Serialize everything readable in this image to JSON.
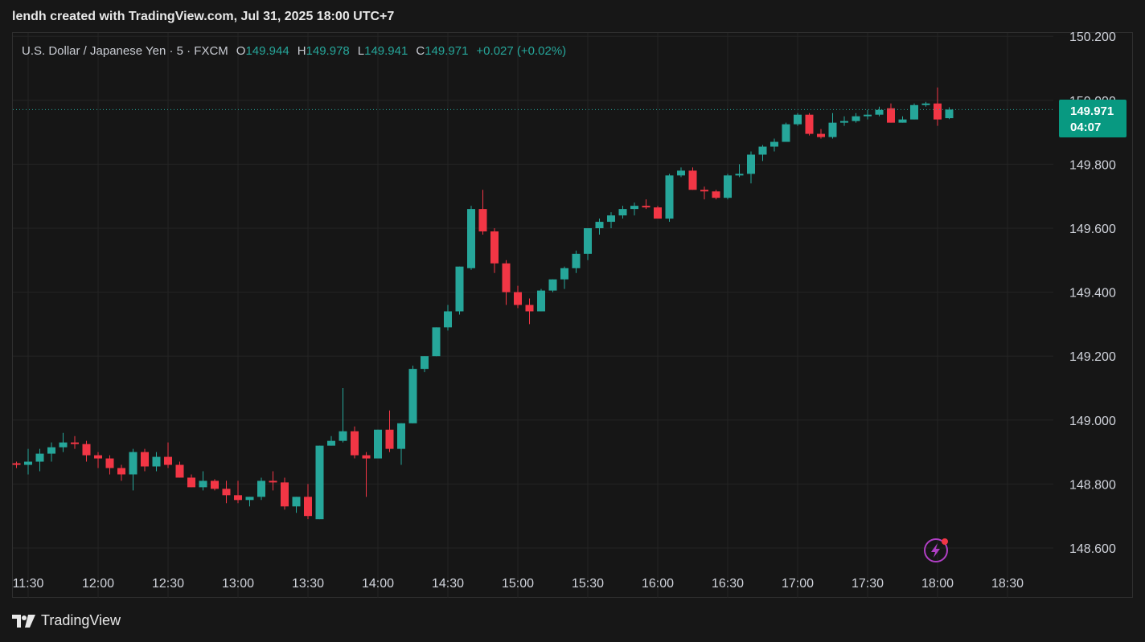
{
  "header": {
    "caption": "lendh created with TradingView.com, Jul 31, 2025 18:00 UTC+7"
  },
  "legend": {
    "symbol": "U.S. Dollar / Japanese Yen · 5 · FXCM",
    "open_key": "O",
    "open": "149.944",
    "high_key": "H",
    "high": "149.978",
    "low_key": "L",
    "low": "149.941",
    "close_key": "C",
    "close": "149.971",
    "change": "+0.027 (+0.02%)"
  },
  "last_price": {
    "price": "149.971",
    "countdown": "04:07"
  },
  "footer": {
    "brand": "TradingView"
  },
  "colors": {
    "up": "#26a69a",
    "down": "#f23645",
    "badge": "#089981",
    "grid": "#242424",
    "axis_text": "#d1d4dc",
    "background": "#161616"
  },
  "chart_data": {
    "type": "candlestick",
    "timeframe": "5",
    "ylim": [
      148.54,
      150.22
    ],
    "y_ticks": [
      148.6,
      148.8,
      149.0,
      149.2,
      149.4,
      149.6,
      149.8,
      150.0,
      150.2
    ],
    "y_tick_labels": [
      "148.600",
      "148.800",
      "149.000",
      "149.200",
      "149.400",
      "149.600",
      "149.800",
      "150.000",
      "150.200"
    ],
    "x_ticks": [
      "11:30",
      "12:00",
      "12:30",
      "13:00",
      "13:30",
      "14:00",
      "14:30",
      "15:00",
      "15:30",
      "16:00",
      "16:30",
      "17:00",
      "17:30",
      "18:00",
      "18:30"
    ],
    "first_candle_time": "11:25",
    "interval_minutes": 5,
    "candles": [
      [
        148.865,
        148.87,
        148.85,
        148.86
      ],
      [
        148.86,
        148.91,
        148.83,
        148.87
      ],
      [
        148.87,
        148.91,
        148.84,
        148.895
      ],
      [
        148.895,
        148.93,
        148.87,
        148.915
      ],
      [
        148.915,
        148.96,
        148.9,
        148.93
      ],
      [
        148.93,
        148.95,
        148.91,
        148.925
      ],
      [
        148.925,
        148.935,
        148.87,
        148.89
      ],
      [
        148.89,
        148.9,
        148.85,
        148.88
      ],
      [
        148.88,
        148.89,
        148.83,
        148.85
      ],
      [
        148.85,
        148.86,
        148.81,
        148.83
      ],
      [
        148.83,
        148.91,
        148.78,
        148.9
      ],
      [
        148.9,
        148.91,
        148.84,
        148.855
      ],
      [
        148.855,
        148.9,
        148.84,
        148.885
      ],
      [
        148.885,
        148.93,
        148.85,
        148.86
      ],
      [
        148.86,
        148.87,
        148.82,
        148.82
      ],
      [
        148.82,
        148.83,
        148.79,
        148.79
      ],
      [
        148.79,
        148.84,
        148.78,
        148.81
      ],
      [
        148.81,
        148.815,
        148.78,
        148.785
      ],
      [
        148.785,
        148.81,
        148.74,
        148.765
      ],
      [
        148.765,
        148.81,
        148.74,
        148.75
      ],
      [
        148.75,
        148.76,
        148.73,
        148.76
      ],
      [
        148.76,
        148.82,
        148.75,
        148.81
      ],
      [
        148.81,
        148.84,
        148.78,
        148.805
      ],
      [
        148.805,
        148.82,
        148.72,
        148.73
      ],
      [
        148.73,
        148.76,
        148.71,
        148.76
      ],
      [
        148.76,
        148.8,
        148.69,
        148.7
      ],
      [
        148.69,
        148.92,
        148.69,
        148.92
      ],
      [
        148.92,
        148.95,
        148.92,
        148.935
      ],
      [
        148.935,
        149.1,
        148.93,
        148.965
      ],
      [
        148.965,
        148.98,
        148.88,
        148.89
      ],
      [
        148.89,
        148.9,
        148.76,
        148.88
      ],
      [
        148.88,
        148.97,
        148.88,
        148.97
      ],
      [
        148.97,
        149.03,
        148.9,
        148.91
      ],
      [
        148.91,
        148.99,
        148.86,
        148.99
      ],
      [
        148.99,
        149.17,
        148.99,
        149.16
      ],
      [
        149.16,
        149.2,
        149.15,
        149.2
      ],
      [
        149.2,
        149.29,
        149.2,
        149.29
      ],
      [
        149.29,
        149.36,
        149.28,
        149.34
      ],
      [
        149.34,
        149.48,
        149.33,
        149.48
      ],
      [
        149.475,
        149.67,
        149.47,
        149.66
      ],
      [
        149.66,
        149.72,
        149.58,
        149.59
      ],
      [
        149.59,
        149.6,
        149.46,
        149.49
      ],
      [
        149.49,
        149.5,
        149.36,
        149.4
      ],
      [
        149.4,
        149.42,
        149.35,
        149.36
      ],
      [
        149.36,
        149.38,
        149.3,
        149.34
      ],
      [
        149.34,
        149.41,
        149.34,
        149.405
      ],
      [
        149.405,
        149.44,
        149.4,
        149.44
      ],
      [
        149.44,
        149.48,
        149.41,
        149.475
      ],
      [
        149.475,
        149.53,
        149.46,
        149.52
      ],
      [
        149.52,
        149.6,
        149.5,
        149.6
      ],
      [
        149.6,
        149.63,
        149.58,
        149.62
      ],
      [
        149.62,
        149.65,
        149.6,
        149.64
      ],
      [
        149.64,
        149.67,
        149.63,
        149.66
      ],
      [
        149.66,
        149.68,
        149.64,
        149.67
      ],
      [
        149.67,
        149.69,
        149.66,
        149.665
      ],
      [
        149.665,
        149.67,
        149.63,
        149.63
      ],
      [
        149.63,
        149.77,
        149.62,
        149.765
      ],
      [
        149.765,
        149.79,
        149.76,
        149.78
      ],
      [
        149.78,
        149.79,
        149.72,
        149.72
      ],
      [
        149.72,
        149.73,
        149.69,
        149.715
      ],
      [
        149.715,
        149.72,
        149.69,
        149.695
      ],
      [
        149.695,
        149.77,
        149.69,
        149.765
      ],
      [
        149.765,
        149.8,
        149.76,
        149.77
      ],
      [
        149.77,
        149.84,
        149.74,
        149.83
      ],
      [
        149.83,
        149.86,
        149.81,
        149.855
      ],
      [
        149.855,
        149.88,
        149.84,
        149.87
      ],
      [
        149.87,
        149.93,
        149.87,
        149.925
      ],
      [
        149.925,
        149.96,
        149.92,
        149.955
      ],
      [
        149.955,
        149.96,
        149.89,
        149.895
      ],
      [
        149.895,
        149.91,
        149.88,
        149.885
      ],
      [
        149.885,
        149.96,
        149.88,
        149.93
      ],
      [
        149.93,
        149.95,
        149.92,
        149.935
      ],
      [
        149.935,
        149.96,
        149.93,
        149.95
      ],
      [
        149.95,
        149.97,
        149.94,
        149.955
      ],
      [
        149.955,
        149.98,
        149.95,
        149.97
      ],
      [
        149.975,
        149.99,
        149.93,
        149.93
      ],
      [
        149.93,
        149.95,
        149.93,
        149.94
      ],
      [
        149.94,
        149.99,
        149.94,
        149.985
      ],
      [
        149.985,
        149.995,
        149.98,
        149.99
      ],
      [
        149.99,
        150.04,
        149.92,
        149.94
      ],
      [
        149.944,
        149.978,
        149.941,
        149.971
      ]
    ],
    "last_price": 149.971
  }
}
